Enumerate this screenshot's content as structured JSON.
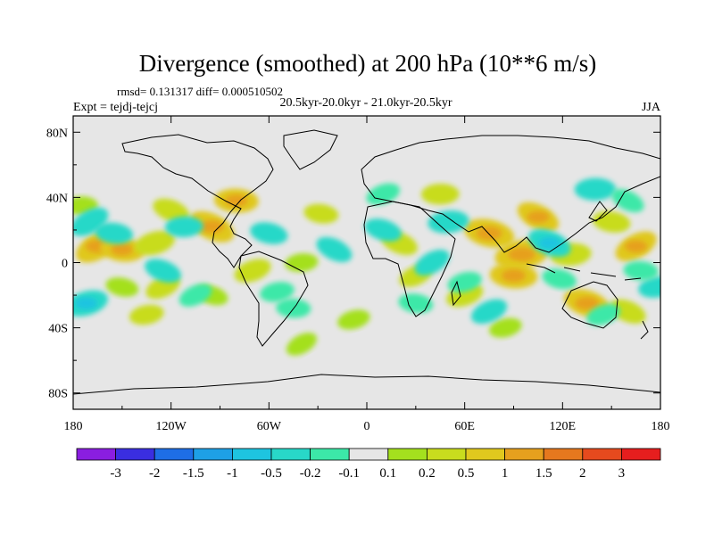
{
  "chart_data": {
    "type": "heatmap",
    "title": "Divergence (smoothed) at 200 hPa (10**6 m/s)",
    "stats_text": "rmsd= 0.131317 diff= 0.000510502",
    "left_label": "Expt = tejdj-tejcj",
    "center_label": "20.5kyr-20.0kyr - 21.0kyr-20.5kyr",
    "right_label": "JJA",
    "x_ticks": [
      "180",
      "120W",
      "60W",
      "0",
      "60E",
      "120E",
      "180"
    ],
    "x_tick_values": [
      -180,
      -120,
      -60,
      0,
      60,
      120,
      180
    ],
    "y_ticks": [
      "80N",
      "40N",
      "0",
      "40S",
      "80S"
    ],
    "y_tick_values": [
      80,
      40,
      0,
      -40,
      -80
    ],
    "xlim": [
      -180,
      180
    ],
    "ylim": [
      -90,
      90
    ],
    "colorbar_labels": [
      "-3",
      "-2",
      "-1.5",
      "-1",
      "-0.5",
      "-0.2",
      "-0.1",
      "0.1",
      "0.2",
      "0.5",
      "1",
      "1.5",
      "2",
      "3"
    ],
    "colorbar_levels": [
      -3,
      -2,
      -1.5,
      -1,
      -0.5,
      -0.2,
      -0.1,
      0.1,
      0.2,
      0.5,
      1,
      1.5,
      2,
      3
    ],
    "colorbar_colors": [
      "#8a1ee0",
      "#3a2ee0",
      "#1e6ee6",
      "#1ea0e6",
      "#1ec4e0",
      "#28d8c8",
      "#3ce8a8",
      "#e6e6e6",
      "#a4e01e",
      "#c8dc1e",
      "#e0c81e",
      "#e6a01e",
      "#e6781e",
      "#e64a1e",
      "#e61e1e"
    ],
    "series": [
      {
        "name": "positive",
        "values": [
          {
            "lon": -165,
            "lat": 10,
            "value": 0.6
          },
          {
            "lon": -150,
            "lat": 8,
            "value": 0.5
          },
          {
            "lon": -130,
            "lat": 12,
            "value": 0.4
          },
          {
            "lon": -120,
            "lat": 32,
            "value": 0.3
          },
          {
            "lon": -175,
            "lat": 35,
            "value": 0.15
          },
          {
            "lon": -125,
            "lat": -15,
            "value": 0.25
          },
          {
            "lon": -150,
            "lat": -15,
            "value": 0.15
          },
          {
            "lon": -135,
            "lat": -32,
            "value": 0.2
          },
          {
            "lon": -95,
            "lat": 22,
            "value": 0.6
          },
          {
            "lon": -80,
            "lat": 38,
            "value": 0.5
          },
          {
            "lon": -70,
            "lat": -5,
            "value": 0.3
          },
          {
            "lon": -95,
            "lat": -20,
            "value": 0.15
          },
          {
            "lon": -40,
            "lat": 0,
            "value": 0.15
          },
          {
            "lon": -40,
            "lat": -50,
            "value": 0.15
          },
          {
            "lon": -28,
            "lat": 30,
            "value": 0.2
          },
          {
            "lon": -8,
            "lat": -35,
            "value": 0.15
          },
          {
            "lon": 20,
            "lat": 12,
            "value": 0.3
          },
          {
            "lon": 45,
            "lat": 42,
            "value": 0.3
          },
          {
            "lon": 30,
            "lat": -8,
            "value": 0.2
          },
          {
            "lon": 75,
            "lat": 18,
            "value": 0.7
          },
          {
            "lon": 95,
            "lat": 5,
            "value": 0.8
          },
          {
            "lon": 105,
            "lat": 28,
            "value": 0.5
          },
          {
            "lon": 90,
            "lat": -8,
            "value": 0.6
          },
          {
            "lon": 60,
            "lat": -20,
            "value": 0.3
          },
          {
            "lon": 135,
            "lat": -25,
            "value": 0.6
          },
          {
            "lon": 125,
            "lat": 5,
            "value": 0.4
          },
          {
            "lon": 165,
            "lat": 10,
            "value": 0.5
          },
          {
            "lon": 150,
            "lat": 25,
            "value": 0.3
          },
          {
            "lon": 85,
            "lat": -40,
            "value": 0.15
          },
          {
            "lon": 160,
            "lat": -30,
            "value": 0.3
          }
        ]
      },
      {
        "name": "negative",
        "values": [
          {
            "lon": -170,
            "lat": 25,
            "value": -0.4
          },
          {
            "lon": -155,
            "lat": 18,
            "value": -0.3
          },
          {
            "lon": -172,
            "lat": -25,
            "value": -0.5
          },
          {
            "lon": -125,
            "lat": -5,
            "value": -0.3
          },
          {
            "lon": -112,
            "lat": 22,
            "value": -0.3
          },
          {
            "lon": -105,
            "lat": -20,
            "value": -0.2
          },
          {
            "lon": -60,
            "lat": 18,
            "value": -0.3
          },
          {
            "lon": -55,
            "lat": -18,
            "value": -0.2
          },
          {
            "lon": -20,
            "lat": 8,
            "value": -0.3
          },
          {
            "lon": -45,
            "lat": -28,
            "value": -0.2
          },
          {
            "lon": 10,
            "lat": 42,
            "value": -0.2
          },
          {
            "lon": 10,
            "lat": 20,
            "value": -0.3
          },
          {
            "lon": 50,
            "lat": 25,
            "value": -0.4
          },
          {
            "lon": 40,
            "lat": 0,
            "value": -0.3
          },
          {
            "lon": 30,
            "lat": -25,
            "value": -0.2
          },
          {
            "lon": 60,
            "lat": -12,
            "value": -0.2
          },
          {
            "lon": 112,
            "lat": 12,
            "value": -0.5
          },
          {
            "lon": 140,
            "lat": 45,
            "value": -0.4
          },
          {
            "lon": 75,
            "lat": -30,
            "value": -0.3
          },
          {
            "lon": 118,
            "lat": -10,
            "value": -0.2
          },
          {
            "lon": 178,
            "lat": -15,
            "value": -0.3
          },
          {
            "lon": 160,
            "lat": 38,
            "value": -0.2
          },
          {
            "lon": 168,
            "lat": -5,
            "value": -0.2
          },
          {
            "lon": 145,
            "lat": -32,
            "value": -0.2
          }
        ]
      }
    ]
  }
}
